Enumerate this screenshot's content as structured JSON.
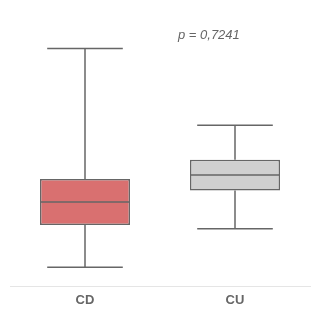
{
  "chart_data": {
    "type": "boxplot",
    "categories": [
      "CD",
      "CU"
    ],
    "boxes": [
      {
        "whisker_low": 5,
        "q1": 16,
        "median": 22,
        "q3": 28,
        "whisker_high": 62
      },
      {
        "whisker_low": 15,
        "q1": 25,
        "median": 29,
        "q3": 33,
        "whisker_high": 42
      }
    ],
    "colors": [
      "#d97070",
      "#d0d0d0"
    ],
    "annotation": "p = 0,7241",
    "ylim": [
      0,
      72
    ],
    "grid": false,
    "tick_labels": "x"
  }
}
